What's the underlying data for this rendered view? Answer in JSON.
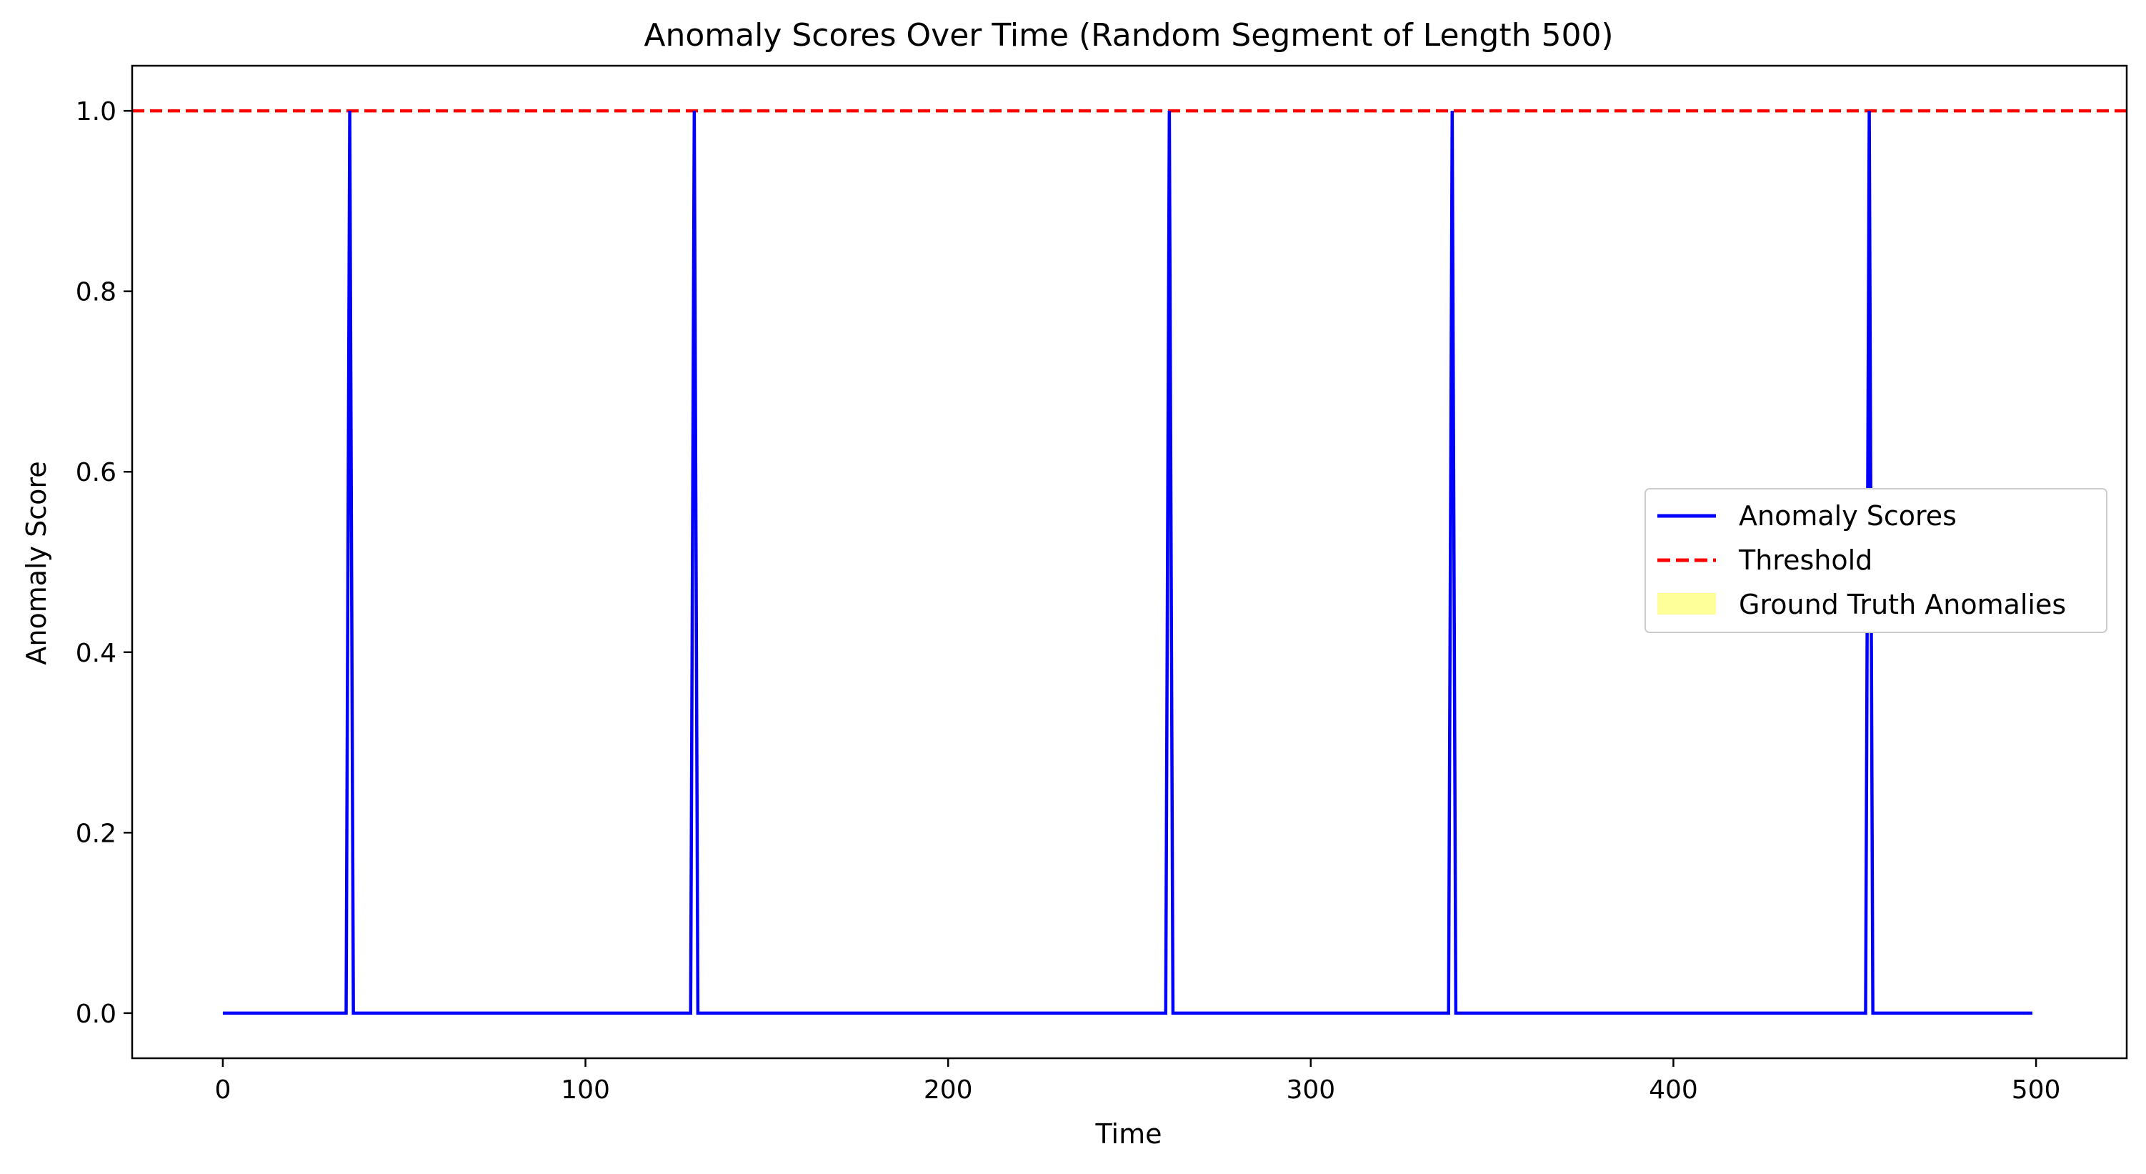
{
  "chart_data": {
    "type": "line",
    "title": "Anomaly Scores Over Time (Random Segment of Length 500)",
    "xlabel": "Time",
    "ylabel": "Anomaly Score",
    "xlim": [
      -25,
      525
    ],
    "ylim": [
      -0.05,
      1.05
    ],
    "xticks": [
      0,
      100,
      200,
      300,
      400,
      500
    ],
    "yticks": [
      0.0,
      0.2,
      0.4,
      0.6,
      0.8,
      1.0
    ],
    "xtick_labels": [
      "0",
      "100",
      "200",
      "300",
      "400",
      "500"
    ],
    "ytick_labels": [
      "0.0",
      "0.2",
      "0.4",
      "0.6",
      "0.8",
      "1.0"
    ],
    "grid": false,
    "legend_position": "center-right",
    "series": [
      {
        "name": "Anomaly Scores",
        "color": "#0000ff",
        "style": "solid",
        "x": [
          0,
          34,
          35,
          36,
          129,
          130,
          131,
          260,
          261,
          262,
          338,
          339,
          340,
          453,
          454,
          455,
          499
        ],
        "y": [
          0,
          0,
          1,
          0,
          0,
          1,
          0,
          0,
          1,
          0,
          0,
          1,
          0,
          0,
          1,
          0,
          0
        ]
      },
      {
        "name": "Threshold",
        "color": "#ff0000",
        "style": "dashed",
        "y_constant": 1.0
      },
      {
        "name": "Ground Truth Anomalies",
        "color": "#ffff99",
        "style": "fill",
        "intervals": []
      }
    ]
  }
}
